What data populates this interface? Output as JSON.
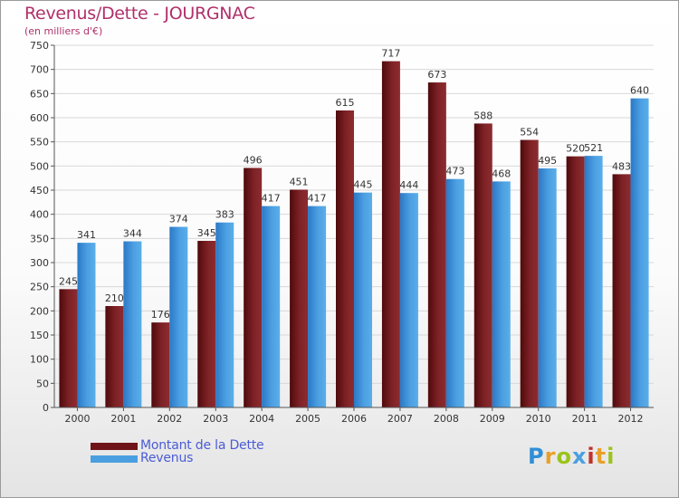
{
  "header": {
    "title": "Revenus/Dette - JOURGNAC",
    "subtitle": "(en milliers d'€)"
  },
  "chart_data": {
    "type": "bar",
    "title": "Revenus/Dette - JOURGNAC",
    "subtitle": "(en milliers d'€)",
    "xlabel": "",
    "ylabel": "",
    "ylim": [
      0,
      750
    ],
    "yticks": [
      0,
      50,
      100,
      150,
      200,
      250,
      300,
      350,
      400,
      450,
      500,
      550,
      600,
      650,
      700,
      750
    ],
    "grid": true,
    "categories": [
      "2000",
      "2001",
      "2002",
      "2003",
      "2004",
      "2005",
      "2006",
      "2007",
      "2008",
      "2009",
      "2010",
      "2011",
      "2012"
    ],
    "series": [
      {
        "name": "Montant de la Dette",
        "color": "#7a1e22",
        "values": [
          245,
          210,
          176,
          345,
          496,
          451,
          615,
          717,
          673,
          588,
          554,
          520,
          483
        ]
      },
      {
        "name": "Revenus",
        "color": "#4a9fe0",
        "values": [
          341,
          344,
          374,
          383,
          417,
          417,
          445,
          444,
          473,
          468,
          495,
          521,
          640
        ]
      }
    ],
    "legend_position": "bottom-left"
  },
  "legend": {
    "items": [
      {
        "label": "Montant de la Dette",
        "color": "#6e1418"
      },
      {
        "label": "Revenus",
        "color": "#4a9fe0"
      }
    ]
  },
  "brand": {
    "letters": [
      "P",
      "r",
      "o",
      "x",
      "i",
      "t",
      "i"
    ],
    "colors": [
      "#2f8fd8",
      "#e8a02a",
      "#9bc31c",
      "#4aa0e0",
      "#c0322c",
      "#e8a02a",
      "#9bc31c"
    ]
  }
}
